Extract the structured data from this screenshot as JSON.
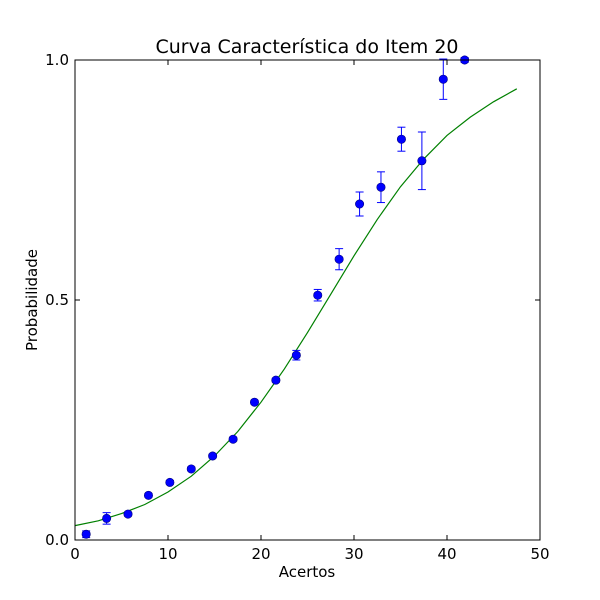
{
  "chart_data": {
    "type": "scatter",
    "title": "Curva Característica do Item 20",
    "xlabel": "Acertos",
    "ylabel": "Probabilidade",
    "xlim": [
      0,
      50
    ],
    "ylim": [
      0,
      1
    ],
    "xticks": [
      0,
      10,
      20,
      30,
      40,
      50
    ],
    "xtick_labels": [
      "0",
      "10",
      "20",
      "30",
      "40",
      "50"
    ],
    "yticks": [
      0,
      0.5,
      1
    ],
    "ytick_labels": [
      "0.0",
      "0.5",
      "1.0"
    ],
    "grid": false,
    "colors": {
      "points": "#0000ff",
      "curve": "#008000",
      "axes": "#000000"
    },
    "points": [
      {
        "x": 1.2,
        "y": 0.012,
        "err": 0.007
      },
      {
        "x": 3.4,
        "y": 0.045,
        "err": 0.012
      },
      {
        "x": 5.7,
        "y": 0.054,
        "err": 0.004
      },
      {
        "x": 7.9,
        "y": 0.093,
        "err": 0.004
      },
      {
        "x": 10.2,
        "y": 0.12,
        "err": 0.004
      },
      {
        "x": 12.5,
        "y": 0.148,
        "err": 0.004
      },
      {
        "x": 14.8,
        "y": 0.175,
        "err": 0.004
      },
      {
        "x": 17.0,
        "y": 0.21,
        "err": 0.004
      },
      {
        "x": 19.3,
        "y": 0.287,
        "err": 0.004
      },
      {
        "x": 21.6,
        "y": 0.333,
        "err": 0.004
      },
      {
        "x": 23.8,
        "y": 0.385,
        "err": 0.01
      },
      {
        "x": 26.1,
        "y": 0.51,
        "err": 0.012
      },
      {
        "x": 28.4,
        "y": 0.585,
        "err": 0.022
      },
      {
        "x": 30.6,
        "y": 0.7,
        "err": 0.025
      },
      {
        "x": 32.9,
        "y": 0.735,
        "err": 0.032
      },
      {
        "x": 35.1,
        "y": 0.835,
        "err": 0.025
      },
      {
        "x": 37.3,
        "y": 0.79,
        "err": 0.06
      },
      {
        "x": 39.6,
        "y": 0.96,
        "err": 0.042
      },
      {
        "x": 41.9,
        "y": 1.0,
        "err": 0.005
      }
    ],
    "curve": {
      "x": [
        0,
        2.5,
        5,
        7.5,
        10,
        12.5,
        15,
        17.5,
        20,
        22.5,
        25,
        27.5,
        30,
        32.5,
        35,
        37.5,
        40,
        42.5,
        45,
        47.5
      ],
      "y": [
        0.03,
        0.04,
        0.055,
        0.074,
        0.1,
        0.133,
        0.175,
        0.226,
        0.287,
        0.356,
        0.432,
        0.512,
        0.592,
        0.668,
        0.736,
        0.794,
        0.843,
        0.881,
        0.913,
        0.94
      ]
    }
  }
}
